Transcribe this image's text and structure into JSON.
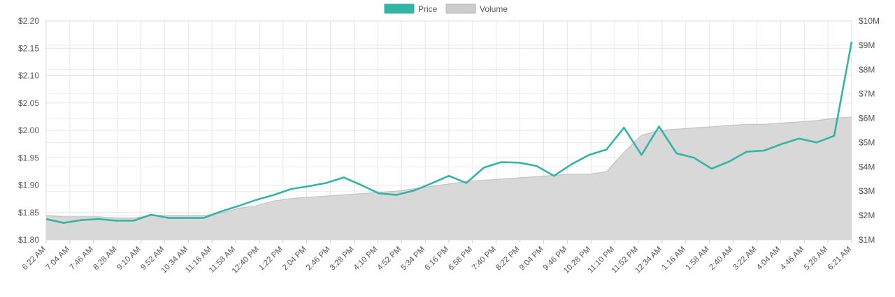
{
  "chart_data": {
    "type": "line",
    "legend": {
      "placement": "top-center",
      "items": [
        {
          "label": "Price",
          "color": "#33b5a5"
        },
        {
          "label": "Volume",
          "color": "#cccccc"
        }
      ]
    },
    "grid": true,
    "y_left": {
      "ylim": [
        1.8,
        2.2
      ],
      "ticks": [
        "$1.80",
        "$1.85",
        "$1.90",
        "$1.95",
        "$2.00",
        "$2.05",
        "$2.10",
        "$2.15",
        "$2.20"
      ]
    },
    "y_right": {
      "ylim": [
        1,
        10
      ],
      "ticks": [
        "$1M",
        "$2M",
        "$3M",
        "$4M",
        "$5M",
        "$6M",
        "$7M",
        "$8M",
        "$9M",
        "$10M"
      ]
    },
    "x_ticks": [
      "6:22 AM",
      "7:04 AM",
      "7:46 AM",
      "8:28 AM",
      "9:10 AM",
      "9:52 AM",
      "10:34 AM",
      "11:16 AM",
      "11:58 AM",
      "12:40 PM",
      "1:22 PM",
      "2:04 PM",
      "2:46 PM",
      "3:28 PM",
      "4:10 PM",
      "4:52 PM",
      "5:34 PM",
      "6:16 PM",
      "6:58 PM",
      "7:40 PM",
      "8:22 PM",
      "9:04 PM",
      "9:46 PM",
      "10:28 PM",
      "11:10 PM",
      "11:52 PM",
      "12:34 AM",
      "1:16 AM",
      "1:58 AM",
      "2:40 AM",
      "3:22 AM",
      "4:04 AM",
      "4:46 AM",
      "5:28 AM",
      "6:21 AM"
    ],
    "series": [
      {
        "name": "Price",
        "color": "#33b5a5",
        "values": [
          1.838,
          1.831,
          1.836,
          1.838,
          1.835,
          1.835,
          1.846,
          1.84,
          1.84,
          1.84,
          1.852,
          1.862,
          1.873,
          1.882,
          1.893,
          1.898,
          1.904,
          1.914,
          1.9,
          1.885,
          1.882,
          1.89,
          1.903,
          1.917,
          1.904,
          1.932,
          1.942,
          1.941,
          1.935,
          1.917,
          1.938,
          1.955,
          1.965,
          2.005,
          1.955,
          2.007,
          1.958,
          1.95,
          1.93,
          1.943,
          1.961,
          1.963,
          1.975,
          1.985,
          1.978,
          1.99,
          2.162
        ]
      },
      {
        "name": "Volume",
        "color": "#cccccc",
        "values": [
          2.0,
          1.95,
          1.95,
          1.95,
          1.9,
          1.9,
          2.0,
          2.0,
          2.0,
          2.0,
          2.1,
          2.3,
          2.4,
          2.6,
          2.7,
          2.75,
          2.8,
          2.85,
          2.9,
          2.95,
          3.0,
          3.1,
          3.2,
          3.3,
          3.4,
          3.45,
          3.5,
          3.55,
          3.6,
          3.65,
          3.7,
          3.7,
          3.8,
          4.6,
          5.3,
          5.5,
          5.55,
          5.6,
          5.65,
          5.7,
          5.75,
          5.75,
          5.8,
          5.85,
          5.9,
          6.0,
          6.05
        ]
      }
    ]
  }
}
